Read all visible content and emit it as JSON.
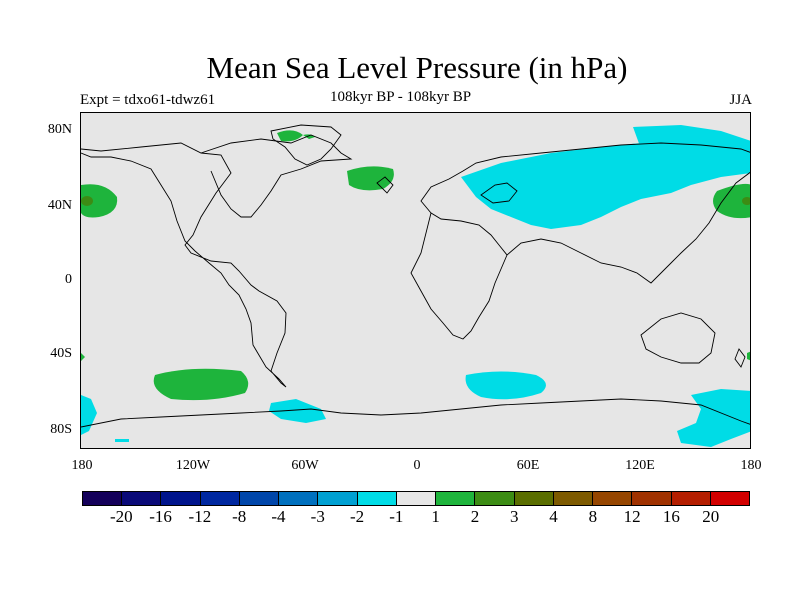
{
  "title": "Mean Sea Level Pressure (in hPa)",
  "experiment": "Expt = tdxo61-tdwz61",
  "period": "108kyr BP - 108kyr BP",
  "season": "JJA",
  "map": {
    "lat_labels": [
      "80N",
      "40N",
      "0",
      "40S",
      "80S"
    ],
    "lon_labels": [
      "180",
      "120W",
      "60W",
      "0",
      "60E",
      "120E",
      "180"
    ],
    "ocean_color": "#e6e6e6",
    "coast_color": "#000000"
  },
  "colorbar": {
    "colors": [
      "#14005a",
      "#0a0a78",
      "#00148c",
      "#0028a0",
      "#0046aa",
      "#0070be",
      "#00a0d2",
      "#00dce6",
      "#e6e6e6",
      "#1eb43c",
      "#3c8c14",
      "#5a6e00",
      "#7d5a00",
      "#964600",
      "#a03200",
      "#b41e00",
      "#d20000"
    ],
    "labels": [
      "-20",
      "-16",
      "-12",
      "-8",
      "-4",
      "-3",
      "-2",
      "-1",
      "1",
      "2",
      "3",
      "4",
      "8",
      "12",
      "16",
      "20"
    ]
  }
}
